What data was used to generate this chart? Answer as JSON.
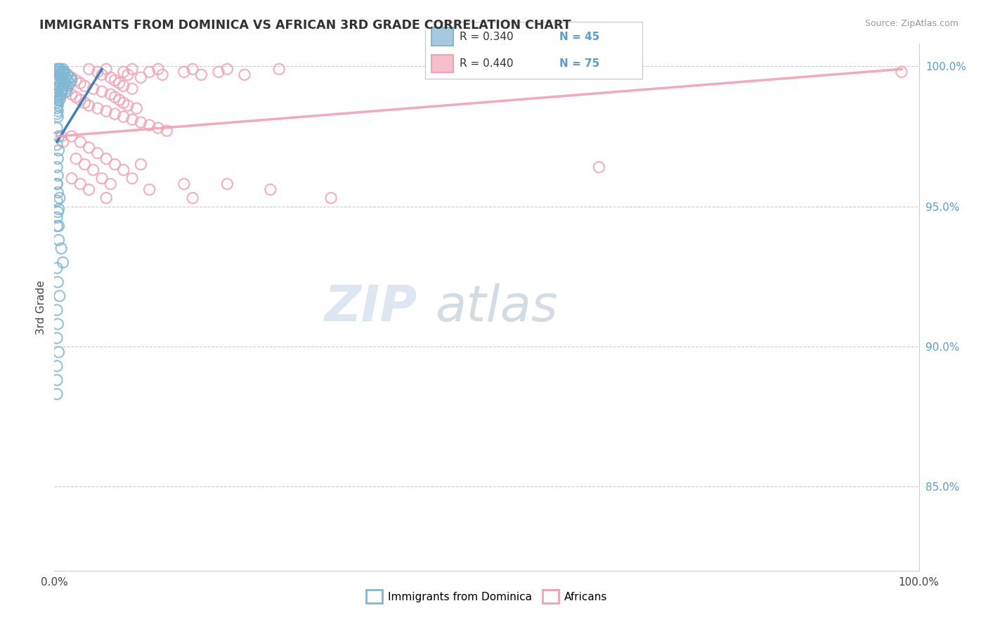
{
  "title": "IMMIGRANTS FROM DOMINICA VS AFRICAN 3RD GRADE CORRELATION CHART",
  "source_text": "Source: ZipAtlas.com",
  "ylabel": "3rd Grade",
  "xmin": 0.0,
  "xmax": 1.0,
  "ymin": 0.82,
  "ymax": 1.008,
  "y_ticks": [
    0.85,
    0.9,
    0.95,
    1.0
  ],
  "y_tick_labels": [
    "85.0%",
    "90.0%",
    "95.0%",
    "100.0%"
  ],
  "x_tick_labels": [
    "0.0%",
    "100.0%"
  ],
  "color_blue": "#7eb8d4",
  "color_pink": "#f4a0b0",
  "watermark_zip": "ZIP",
  "watermark_atlas": "atlas",
  "blue_points": [
    [
      0.003,
      0.999
    ],
    [
      0.005,
      0.999
    ],
    [
      0.007,
      0.999
    ],
    [
      0.01,
      0.999
    ],
    [
      0.003,
      0.998
    ],
    [
      0.006,
      0.998
    ],
    [
      0.009,
      0.998
    ],
    [
      0.012,
      0.998
    ],
    [
      0.004,
      0.997
    ],
    [
      0.007,
      0.997
    ],
    [
      0.011,
      0.997
    ],
    [
      0.015,
      0.997
    ],
    [
      0.003,
      0.996
    ],
    [
      0.008,
      0.996
    ],
    [
      0.013,
      0.996
    ],
    [
      0.018,
      0.996
    ],
    [
      0.004,
      0.995
    ],
    [
      0.009,
      0.995
    ],
    [
      0.015,
      0.995
    ],
    [
      0.02,
      0.995
    ],
    [
      0.003,
      0.994
    ],
    [
      0.007,
      0.994
    ],
    [
      0.012,
      0.994
    ],
    [
      0.018,
      0.994
    ],
    [
      0.005,
      0.993
    ],
    [
      0.01,
      0.993
    ],
    [
      0.016,
      0.993
    ],
    [
      0.004,
      0.992
    ],
    [
      0.009,
      0.992
    ],
    [
      0.014,
      0.992
    ],
    [
      0.003,
      0.991
    ],
    [
      0.008,
      0.991
    ],
    [
      0.013,
      0.991
    ],
    [
      0.004,
      0.99
    ],
    [
      0.008,
      0.99
    ],
    [
      0.003,
      0.989
    ],
    [
      0.007,
      0.989
    ],
    [
      0.004,
      0.988
    ],
    [
      0.006,
      0.988
    ],
    [
      0.003,
      0.987
    ],
    [
      0.004,
      0.986
    ],
    [
      0.003,
      0.985
    ],
    [
      0.004,
      0.984
    ],
    [
      0.003,
      0.983
    ],
    [
      0.004,
      0.982
    ],
    [
      0.003,
      0.978
    ],
    [
      0.005,
      0.975
    ],
    [
      0.003,
      0.972
    ],
    [
      0.005,
      0.97
    ],
    [
      0.004,
      0.967
    ],
    [
      0.003,
      0.964
    ],
    [
      0.004,
      0.961
    ],
    [
      0.003,
      0.958
    ],
    [
      0.004,
      0.955
    ],
    [
      0.003,
      0.952
    ],
    [
      0.005,
      0.949
    ],
    [
      0.003,
      0.946
    ],
    [
      0.005,
      0.943
    ],
    [
      0.003,
      0.958
    ],
    [
      0.006,
      0.953
    ],
    [
      0.004,
      0.948
    ],
    [
      0.003,
      0.943
    ],
    [
      0.005,
      0.938
    ],
    [
      0.008,
      0.935
    ],
    [
      0.01,
      0.93
    ],
    [
      0.003,
      0.928
    ],
    [
      0.004,
      0.923
    ],
    [
      0.006,
      0.918
    ],
    [
      0.003,
      0.913
    ],
    [
      0.004,
      0.908
    ],
    [
      0.003,
      0.903
    ],
    [
      0.005,
      0.898
    ],
    [
      0.003,
      0.893
    ],
    [
      0.003,
      0.888
    ],
    [
      0.003,
      0.883
    ]
  ],
  "pink_points": [
    [
      0.005,
      0.999
    ],
    [
      0.04,
      0.999
    ],
    [
      0.06,
      0.999
    ],
    [
      0.09,
      0.999
    ],
    [
      0.12,
      0.999
    ],
    [
      0.16,
      0.999
    ],
    [
      0.2,
      0.999
    ],
    [
      0.26,
      0.999
    ],
    [
      0.01,
      0.998
    ],
    [
      0.05,
      0.998
    ],
    [
      0.08,
      0.998
    ],
    [
      0.11,
      0.998
    ],
    [
      0.15,
      0.998
    ],
    [
      0.19,
      0.998
    ],
    [
      0.015,
      0.997
    ],
    [
      0.055,
      0.997
    ],
    [
      0.085,
      0.997
    ],
    [
      0.125,
      0.997
    ],
    [
      0.17,
      0.997
    ],
    [
      0.22,
      0.997
    ],
    [
      0.02,
      0.996
    ],
    [
      0.065,
      0.996
    ],
    [
      0.1,
      0.996
    ],
    [
      0.025,
      0.995
    ],
    [
      0.07,
      0.995
    ],
    [
      0.03,
      0.994
    ],
    [
      0.075,
      0.994
    ],
    [
      0.035,
      0.993
    ],
    [
      0.08,
      0.993
    ],
    [
      0.01,
      0.992
    ],
    [
      0.045,
      0.992
    ],
    [
      0.09,
      0.992
    ],
    [
      0.015,
      0.991
    ],
    [
      0.055,
      0.991
    ],
    [
      0.02,
      0.99
    ],
    [
      0.065,
      0.99
    ],
    [
      0.025,
      0.989
    ],
    [
      0.07,
      0.989
    ],
    [
      0.03,
      0.988
    ],
    [
      0.075,
      0.988
    ],
    [
      0.035,
      0.987
    ],
    [
      0.08,
      0.987
    ],
    [
      0.04,
      0.986
    ],
    [
      0.085,
      0.986
    ],
    [
      0.05,
      0.985
    ],
    [
      0.095,
      0.985
    ],
    [
      0.06,
      0.984
    ],
    [
      0.07,
      0.983
    ],
    [
      0.08,
      0.982
    ],
    [
      0.09,
      0.981
    ],
    [
      0.1,
      0.98
    ],
    [
      0.11,
      0.979
    ],
    [
      0.12,
      0.978
    ],
    [
      0.13,
      0.977
    ],
    [
      0.008,
      0.975
    ],
    [
      0.02,
      0.975
    ],
    [
      0.01,
      0.973
    ],
    [
      0.03,
      0.973
    ],
    [
      0.04,
      0.971
    ],
    [
      0.05,
      0.969
    ],
    [
      0.025,
      0.967
    ],
    [
      0.06,
      0.967
    ],
    [
      0.035,
      0.965
    ],
    [
      0.07,
      0.965
    ],
    [
      0.1,
      0.965
    ],
    [
      0.045,
      0.963
    ],
    [
      0.08,
      0.963
    ],
    [
      0.02,
      0.96
    ],
    [
      0.055,
      0.96
    ],
    [
      0.09,
      0.96
    ],
    [
      0.03,
      0.958
    ],
    [
      0.065,
      0.958
    ],
    [
      0.15,
      0.958
    ],
    [
      0.2,
      0.958
    ],
    [
      0.04,
      0.956
    ],
    [
      0.11,
      0.956
    ],
    [
      0.25,
      0.956
    ],
    [
      0.06,
      0.953
    ],
    [
      0.16,
      0.953
    ],
    [
      0.32,
      0.953
    ],
    [
      0.63,
      0.964
    ],
    [
      0.98,
      0.998
    ]
  ],
  "blue_trend_x": [
    0.003,
    0.055
  ],
  "blue_trend_y": [
    0.973,
    0.999
  ],
  "pink_trend_x": [
    0.003,
    0.98
  ],
  "pink_trend_y": [
    0.975,
    0.999
  ]
}
